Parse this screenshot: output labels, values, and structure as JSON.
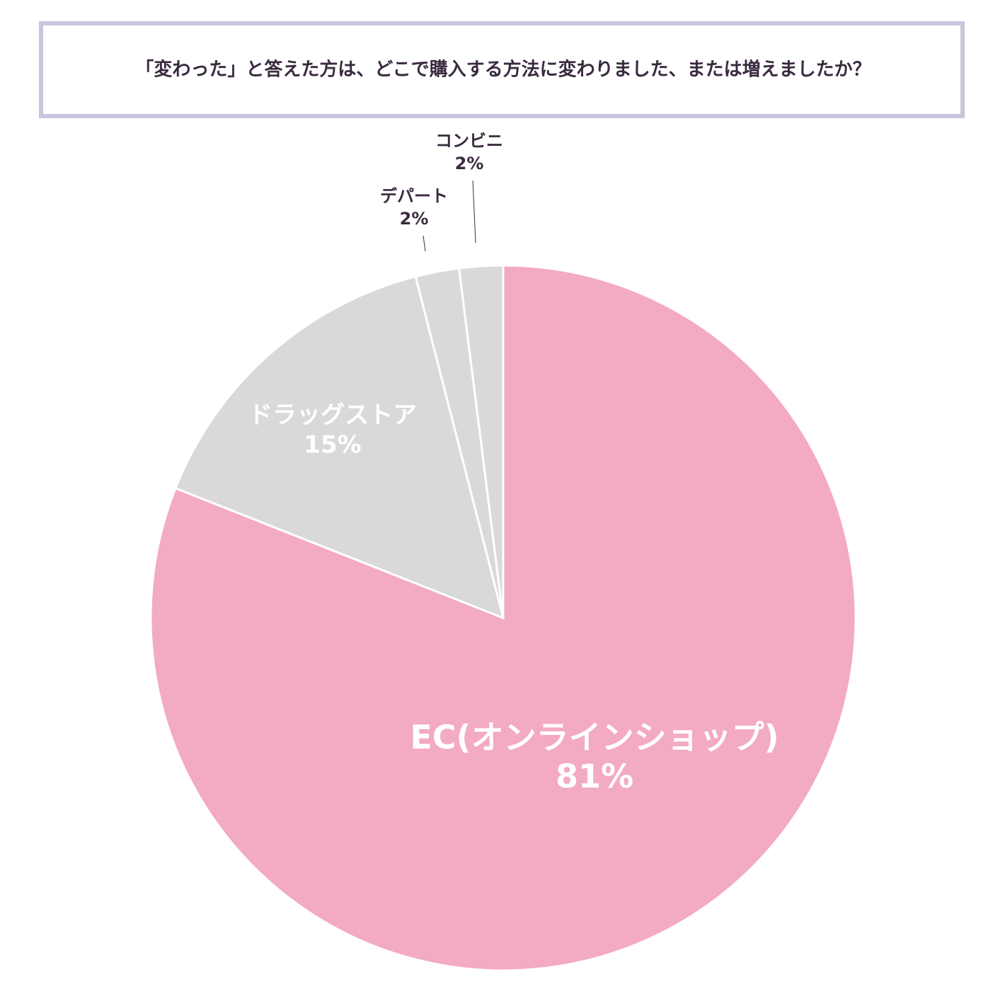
{
  "chart_data": {
    "type": "pie",
    "title": "「変わった」と答えた方は、どこで購入する方法に変わりました、または増えましたか？",
    "categories": [
      "EC(オンラインショップ)",
      "ドラッグストア",
      "デパート",
      "コンビニ"
    ],
    "values": [
      81,
      15,
      2,
      2
    ],
    "value_labels": [
      "81%",
      "15%",
      "2%",
      "2%"
    ],
    "colors": [
      "#f3aac3",
      "#d9d9d9",
      "#d9d9d9",
      "#d9d9d9"
    ]
  }
}
